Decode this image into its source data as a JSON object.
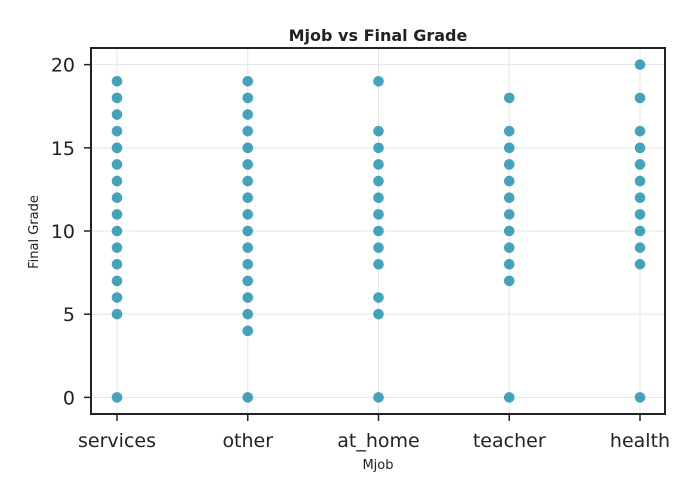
{
  "chart_data": {
    "type": "scatter",
    "title": "Mjob vs Final Grade",
    "xlabel": "Mjob",
    "ylabel": "Final Grade",
    "categories": [
      "services",
      "other",
      "at_home",
      "teacher",
      "health"
    ],
    "ylim": [
      -1,
      21
    ],
    "yticks": [
      0,
      5,
      10,
      15,
      20
    ],
    "grid": true,
    "legend": "none",
    "point_color": "#118ba8",
    "series": [
      {
        "category": "services",
        "y": [
          0,
          5,
          6,
          7,
          8,
          9,
          10,
          11,
          12,
          13,
          14,
          15,
          16,
          17,
          18,
          19
        ]
      },
      {
        "category": "other",
        "y": [
          0,
          4,
          5,
          6,
          7,
          8,
          9,
          10,
          11,
          12,
          13,
          14,
          15,
          16,
          17,
          18,
          19
        ]
      },
      {
        "category": "at_home",
        "y": [
          0,
          5,
          6,
          8,
          9,
          10,
          11,
          12,
          13,
          14,
          15,
          16,
          19
        ]
      },
      {
        "category": "teacher",
        "y": [
          0,
          7,
          8,
          9,
          10,
          11,
          12,
          13,
          14,
          15,
          16,
          18
        ]
      },
      {
        "category": "health",
        "y": [
          0,
          8,
          9,
          10,
          11,
          12,
          13,
          14,
          15,
          16,
          18,
          20
        ]
      }
    ]
  }
}
